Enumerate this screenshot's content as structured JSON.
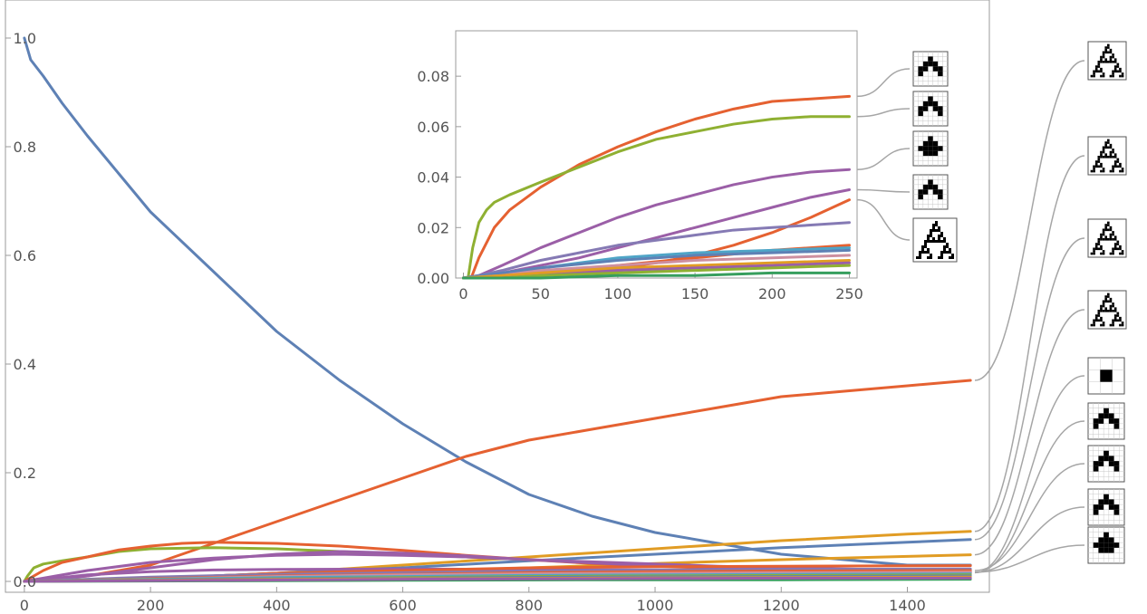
{
  "chart_data": [
    {
      "id": "main",
      "type": "line",
      "title": "",
      "xlabel": "",
      "ylabel": "",
      "xlim": [
        -30,
        1530
      ],
      "ylim": [
        -0.02,
        1.07
      ],
      "xticks": [
        0,
        200,
        400,
        600,
        800,
        1000,
        1200,
        1400
      ],
      "yticks": [
        0.0,
        0.2,
        0.4,
        0.6,
        0.8,
        1.0
      ],
      "xtick_labels": [
        "0",
        "200",
        "400",
        "600",
        "800",
        "1000",
        "1200",
        "1400"
      ],
      "ytick_labels": [
        "0.0",
        "0.2",
        "0.4",
        "0.6",
        "0.8",
        "1.0"
      ],
      "grid": false,
      "legend": "none",
      "series": [
        {
          "color": "#5e81b5",
          "x": [
            0,
            10,
            30,
            60,
            100,
            150,
            200,
            300,
            400,
            500,
            600,
            700,
            800,
            900,
            1000,
            1100,
            1200,
            1300,
            1400,
            1500
          ],
          "y": [
            1.0,
            0.96,
            0.93,
            0.88,
            0.82,
            0.75,
            0.68,
            0.57,
            0.46,
            0.37,
            0.29,
            0.22,
            0.16,
            0.12,
            0.09,
            0.07,
            0.05,
            0.04,
            0.03,
            0.03
          ]
        },
        {
          "color": "#e56131",
          "x": [
            0,
            100,
            200,
            300,
            400,
            500,
            600,
            700,
            800,
            900,
            1000,
            1100,
            1200,
            1300,
            1400,
            1500
          ],
          "y": [
            0.0,
            0.01,
            0.03,
            0.07,
            0.11,
            0.15,
            0.19,
            0.23,
            0.26,
            0.28,
            0.3,
            0.32,
            0.34,
            0.35,
            0.36,
            0.37
          ]
        },
        {
          "color": "#e19c24",
          "x": [
            0,
            200,
            400,
            600,
            800,
            1000,
            1200,
            1400,
            1500
          ],
          "y": [
            0.0,
            0.005,
            0.015,
            0.03,
            0.045,
            0.06,
            0.075,
            0.087,
            0.092
          ]
        },
        {
          "color": "#5e81b5",
          "x": [
            0,
            200,
            400,
            600,
            800,
            1000,
            1200,
            1400,
            1500
          ],
          "y": [
            0.0,
            0.005,
            0.015,
            0.025,
            0.038,
            0.05,
            0.062,
            0.072,
            0.077
          ]
        },
        {
          "color": "#e19c24",
          "x": [
            0,
            200,
            400,
            600,
            800,
            1000,
            1200,
            1400,
            1500
          ],
          "y": [
            0.0,
            0.003,
            0.01,
            0.017,
            0.025,
            0.033,
            0.04,
            0.046,
            0.049
          ]
        },
        {
          "color": "#8fb032",
          "x": [
            0,
            5,
            15,
            30,
            60,
            100,
            150,
            200,
            300,
            400,
            500,
            600,
            700,
            800,
            900,
            1000,
            1100,
            1200,
            1300,
            1400,
            1500
          ],
          "y": [
            0.0,
            0.01,
            0.025,
            0.032,
            0.038,
            0.045,
            0.055,
            0.06,
            0.062,
            0.06,
            0.055,
            0.05,
            0.045,
            0.04,
            0.035,
            0.03,
            0.025,
            0.022,
            0.02,
            0.018,
            0.016
          ]
        },
        {
          "color": "#e56131",
          "x": [
            0,
            30,
            60,
            100,
            150,
            200,
            250,
            300,
            400,
            500,
            600,
            700,
            800,
            900,
            1000,
            1100,
            1200,
            1300,
            1400,
            1500
          ],
          "y": [
            0.0,
            0.02,
            0.035,
            0.045,
            0.058,
            0.065,
            0.07,
            0.072,
            0.07,
            0.065,
            0.057,
            0.048,
            0.04,
            0.033,
            0.028,
            0.024,
            0.021,
            0.019,
            0.017,
            0.016
          ]
        },
        {
          "color": "#9b5fa7",
          "x": [
            0,
            50,
            100,
            200,
            300,
            400,
            500,
            600,
            700,
            800,
            900,
            1000,
            1100,
            1200,
            1300,
            1400,
            1500
          ],
          "y": [
            0.0,
            0.01,
            0.02,
            0.035,
            0.043,
            0.048,
            0.05,
            0.048,
            0.045,
            0.04,
            0.036,
            0.032,
            0.028,
            0.025,
            0.023,
            0.021,
            0.02
          ]
        },
        {
          "color": "#9b5fa7",
          "x": [
            0,
            100,
            200,
            300,
            400,
            500,
            600,
            700,
            800,
            900,
            1000,
            1200,
            1400,
            1500
          ],
          "y": [
            0.0,
            0.01,
            0.025,
            0.04,
            0.05,
            0.055,
            0.052,
            0.047,
            0.04,
            0.034,
            0.029,
            0.022,
            0.018,
            0.017
          ]
        },
        {
          "color": "#9b5fa7",
          "x": [
            0,
            100,
            200,
            300,
            400,
            600,
            800,
            1000,
            1200,
            1500
          ],
          "y": [
            0.0,
            0.012,
            0.018,
            0.021,
            0.022,
            0.023,
            0.022,
            0.021,
            0.019,
            0.017
          ]
        },
        {
          "color": "#e56131",
          "x": [
            0,
            100,
            200,
            300,
            400,
            600,
            800,
            1000,
            1200,
            1500
          ],
          "y": [
            0.0,
            0.002,
            0.005,
            0.01,
            0.015,
            0.02,
            0.025,
            0.027,
            0.028,
            0.029
          ]
        },
        {
          "color": "#857ab4",
          "x": [
            0,
            200,
            400,
            600,
            800,
            1000,
            1200,
            1500
          ],
          "y": [
            0.0,
            0.008,
            0.013,
            0.016,
            0.019,
            0.021,
            0.022,
            0.023
          ]
        },
        {
          "color": "#e56131",
          "x": [
            0,
            200,
            400,
            600,
            800,
            1000,
            1200,
            1500
          ],
          "y": [
            0.0,
            0.005,
            0.01,
            0.013,
            0.016,
            0.018,
            0.019,
            0.02
          ]
        },
        {
          "color": "#cd8fa0",
          "x": [
            0,
            200,
            400,
            600,
            800,
            1000,
            1200,
            1500
          ],
          "y": [
            0.0,
            0.004,
            0.009,
            0.012,
            0.014,
            0.015,
            0.016,
            0.017
          ]
        },
        {
          "color": "#4fa5c7",
          "x": [
            0,
            200,
            400,
            600,
            800,
            1000,
            1200,
            1500
          ],
          "y": [
            0.0,
            0.004,
            0.007,
            0.009,
            0.011,
            0.012,
            0.013,
            0.014
          ]
        },
        {
          "color": "#8fb032",
          "x": [
            0,
            200,
            400,
            600,
            800,
            1000,
            1200,
            1500
          ],
          "y": [
            0.0,
            0.003,
            0.005,
            0.007,
            0.009,
            0.01,
            0.011,
            0.012
          ]
        },
        {
          "color": "#5e81b5",
          "x": [
            0,
            300,
            600,
            900,
            1200,
            1500
          ],
          "y": [
            0.0,
            0.004,
            0.006,
            0.008,
            0.009,
            0.01
          ]
        },
        {
          "color": "#e19c24",
          "x": [
            0,
            300,
            600,
            900,
            1200,
            1500
          ],
          "y": [
            0.0,
            0.003,
            0.005,
            0.006,
            0.007,
            0.008
          ]
        },
        {
          "color": "#369e5d",
          "x": [
            0,
            300,
            600,
            900,
            1200,
            1500
          ],
          "y": [
            0.0,
            0.001,
            0.002,
            0.003,
            0.003,
            0.004
          ]
        },
        {
          "color": "#9b5fa7",
          "x": [
            0,
            300,
            600,
            900,
            1200,
            1500
          ],
          "y": [
            0.0,
            0.002,
            0.004,
            0.005,
            0.006,
            0.006
          ]
        }
      ]
    },
    {
      "id": "inset",
      "type": "line",
      "title": "",
      "xlabel": "",
      "ylabel": "",
      "xlim": [
        -5,
        255
      ],
      "ylim": [
        0,
        0.098
      ],
      "xticks": [
        0,
        50,
        100,
        150,
        200,
        250
      ],
      "yticks": [
        0.0,
        0.02,
        0.04,
        0.06,
        0.08
      ],
      "xtick_labels": [
        "0",
        "50",
        "100",
        "150",
        "200",
        "250"
      ],
      "ytick_labels": [
        "0.00",
        "0.02",
        "0.04",
        "0.06",
        "0.08"
      ],
      "grid": false,
      "legend": "none",
      "series": [
        {
          "color": "#e56131",
          "x": [
            0,
            5,
            10,
            20,
            30,
            50,
            75,
            100,
            125,
            150,
            175,
            200,
            225,
            250
          ],
          "y": [
            0.0,
            0.0,
            0.008,
            0.02,
            0.027,
            0.036,
            0.045,
            0.052,
            0.058,
            0.063,
            0.067,
            0.07,
            0.071,
            0.072
          ]
        },
        {
          "color": "#8fb032",
          "x": [
            0,
            3,
            6,
            10,
            15,
            20,
            30,
            50,
            75,
            100,
            125,
            150,
            175,
            200,
            225,
            250
          ],
          "y": [
            0.0,
            0.0,
            0.012,
            0.022,
            0.027,
            0.03,
            0.033,
            0.038,
            0.044,
            0.05,
            0.055,
            0.058,
            0.061,
            0.063,
            0.064,
            0.064
          ]
        },
        {
          "color": "#9b5fa7",
          "x": [
            0,
            10,
            25,
            50,
            75,
            100,
            125,
            150,
            175,
            200,
            225,
            250
          ],
          "y": [
            0.0,
            0.001,
            0.005,
            0.012,
            0.018,
            0.024,
            0.029,
            0.033,
            0.037,
            0.04,
            0.042,
            0.043
          ]
        },
        {
          "color": "#9b5fa7",
          "x": [
            0,
            10,
            25,
            50,
            75,
            100,
            125,
            150,
            175,
            200,
            225,
            250
          ],
          "y": [
            0.0,
            0.0,
            0.002,
            0.005,
            0.008,
            0.012,
            0.016,
            0.02,
            0.024,
            0.028,
            0.032,
            0.035
          ]
        },
        {
          "color": "#e56131",
          "x": [
            0,
            25,
            50,
            75,
            100,
            125,
            150,
            175,
            200,
            225,
            250
          ],
          "y": [
            0.0,
            0.0,
            0.001,
            0.002,
            0.004,
            0.006,
            0.009,
            0.013,
            0.018,
            0.024,
            0.031
          ]
        },
        {
          "color": "#857ab4",
          "x": [
            0,
            10,
            25,
            50,
            75,
            100,
            125,
            150,
            175,
            200,
            225,
            250
          ],
          "y": [
            0.0,
            0.001,
            0.003,
            0.007,
            0.01,
            0.013,
            0.015,
            0.017,
            0.019,
            0.02,
            0.021,
            0.022
          ]
        },
        {
          "color": "#e56131",
          "x": [
            0,
            25,
            50,
            100,
            150,
            200,
            250
          ],
          "y": [
            0.0,
            0.001,
            0.002,
            0.005,
            0.008,
            0.011,
            0.013
          ]
        },
        {
          "color": "#4fa5c7",
          "x": [
            0,
            25,
            50,
            100,
            150,
            200,
            250
          ],
          "y": [
            0.0,
            0.002,
            0.004,
            0.008,
            0.01,
            0.011,
            0.012
          ]
        },
        {
          "color": "#5e81b5",
          "x": [
            0,
            25,
            50,
            100,
            150,
            200,
            250
          ],
          "y": [
            0.0,
            0.002,
            0.004,
            0.007,
            0.009,
            0.01,
            0.011
          ]
        },
        {
          "color": "#cd8fa0",
          "x": [
            0,
            25,
            50,
            100,
            150,
            200,
            250
          ],
          "y": [
            0.0,
            0.001,
            0.003,
            0.005,
            0.007,
            0.008,
            0.009
          ]
        },
        {
          "color": "#e19c24",
          "x": [
            0,
            25,
            50,
            100,
            150,
            200,
            250
          ],
          "y": [
            0.0,
            0.001,
            0.002,
            0.004,
            0.005,
            0.006,
            0.007
          ]
        },
        {
          "color": "#9b5fa7",
          "x": [
            0,
            25,
            50,
            100,
            150,
            200,
            250
          ],
          "y": [
            0.0,
            0.0,
            0.001,
            0.003,
            0.004,
            0.005,
            0.006
          ]
        },
        {
          "color": "#8fb032",
          "x": [
            0,
            25,
            50,
            100,
            150,
            200,
            250
          ],
          "y": [
            0.0,
            0.0,
            0.001,
            0.002,
            0.003,
            0.004,
            0.005
          ]
        },
        {
          "color": "#369e5d",
          "x": [
            0,
            50,
            100,
            150,
            200,
            250
          ],
          "y": [
            0.0,
            0.0,
            0.001,
            0.001,
            0.002,
            0.002
          ]
        }
      ]
    }
  ],
  "colors": {
    "frame": "#9b9b9b",
    "tick_text": "#555555",
    "connector": "#a6a6a6"
  },
  "thumbnails": {
    "main": [
      "sierpinski-pattern-icon",
      "sierpinski-pattern-icon",
      "sierpinski-pattern-icon",
      "sierpinski-pattern-icon",
      "single-cell-icon",
      "small-triangle-icon",
      "small-triangle-icon",
      "small-triangle-icon",
      "small-blob-icon"
    ],
    "inset": [
      "small-triangle-icon",
      "small-triangle-icon",
      "small-blob-icon",
      "small-triangle-icon",
      "sierpinski-pattern-icon"
    ]
  }
}
